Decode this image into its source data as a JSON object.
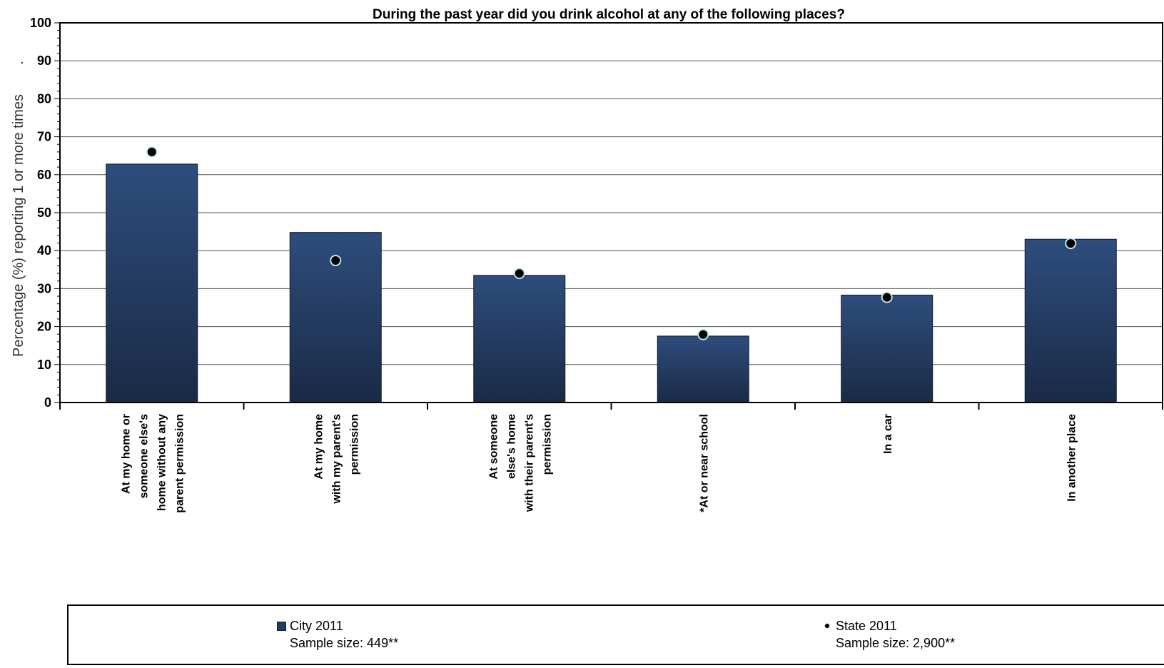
{
  "chart_data": {
    "type": "bar",
    "title": "During the past year did you drink alcohol at any of the following places?",
    "ylabel": "Percentage (%) reporting 1 or more times",
    "ylabel_suffix": ".",
    "ylim": [
      0,
      100
    ],
    "yticks": [
      0,
      10,
      20,
      30,
      40,
      50,
      60,
      70,
      80,
      90,
      100
    ],
    "grid": true,
    "categories": [
      [
        "At my home or",
        "someone else's",
        "home without any",
        "parent permission"
      ],
      [
        "At my home",
        "with my parent's",
        "permission"
      ],
      [
        "At someone",
        "else's home",
        "with their parent's",
        "permission"
      ],
      [
        "*At or near school"
      ],
      [
        "In a car"
      ],
      [
        "In another place"
      ]
    ],
    "series": [
      {
        "name": "City 2011",
        "kind": "bar",
        "values": [
          62.8,
          44.8,
          33.5,
          17.5,
          28.3,
          43.0
        ]
      },
      {
        "name": "State 2011",
        "kind": "point",
        "values": [
          66.0,
          37.4,
          34.0,
          17.9,
          27.7,
          41.9
        ]
      }
    ],
    "legend": {
      "placement": "bottom",
      "entries": [
        {
          "series": "City 2011",
          "label": "City 2011",
          "sample": "Sample size: 449**"
        },
        {
          "series": "State 2011",
          "label": "State 2011",
          "sample": "Sample size: 2,900**"
        }
      ]
    },
    "colors": {
      "bar_top": "#2e4d7d",
      "bar_bottom": "#1a2a45",
      "point": "#000000",
      "point_ring": "#bfe6e6"
    }
  }
}
